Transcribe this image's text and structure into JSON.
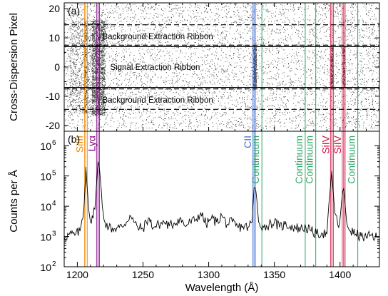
{
  "chart_data": [
    {
      "type": "scatter",
      "panel_label": "(a)",
      "xlim": [
        1190,
        1430
      ],
      "ylim": [
        -22,
        22
      ],
      "ylabel": "Cross-Dispersion Pixel",
      "yticks": [
        -20,
        -10,
        0,
        10,
        20
      ],
      "signal_boundaries": [
        -7,
        7
      ],
      "background_boundaries": [
        {
          "range": [
            7.5,
            14.5
          ],
          "label": "Background Extraction Ribbon"
        },
        {
          "range": [
            -14.5,
            -7.5
          ],
          "label": "Background Extraction Ribbon"
        }
      ],
      "annotations": [
        {
          "text": "Background Extraction Ribbon",
          "x": 1200,
          "y": 10.5
        },
        {
          "text": "Signal Extraction Ribbon",
          "x": 1206,
          "y": 0
        },
        {
          "text": "Background Extraction Ribbon",
          "x": 1200,
          "y": -11.2
        }
      ],
      "point_density_note": "uniform background counts across -20..22; enhanced counts near 1206 (Si III), 1216 (Ly-alpha), 1335 (C II), 1394 and 1403 (Si IV)"
    },
    {
      "type": "line",
      "panel_label": "(b)",
      "xlim": [
        1190,
        1430
      ],
      "ylim": [
        100,
        3000000
      ],
      "yscale": "log",
      "xlabel": "Wavelength (Å)",
      "ylabel": "Counts per Å",
      "xticks": [
        1200,
        1250,
        1300,
        1350,
        1400
      ],
      "yticks": [
        {
          "value": 100,
          "label": "10",
          "sup": "2"
        },
        {
          "value": 1000,
          "label": "10",
          "sup": "3"
        },
        {
          "value": 10000,
          "label": "10",
          "sup": "4"
        },
        {
          "value": 100000,
          "label": "10",
          "sup": "5"
        },
        {
          "value": 1000000,
          "label": "10",
          "sup": "6"
        }
      ],
      "spectrum": {
        "x": [
          1190,
          1194,
          1198,
          1202,
          1205,
          1206.5,
          1208,
          1210,
          1212,
          1214,
          1215.7,
          1217,
          1219,
          1221,
          1224,
          1228,
          1232,
          1236,
          1240,
          1243,
          1246,
          1250,
          1254,
          1258,
          1262,
          1266,
          1270,
          1274,
          1278,
          1282,
          1286,
          1290,
          1294,
          1298,
          1302,
          1306,
          1310,
          1314,
          1318,
          1322,
          1326,
          1330,
          1333,
          1334.5,
          1336,
          1338,
          1342,
          1346,
          1350,
          1354,
          1358,
          1362,
          1366,
          1370,
          1374,
          1378,
          1382,
          1386,
          1390,
          1393.8,
          1396,
          1399,
          1402.8,
          1405,
          1408,
          1412,
          1416,
          1420,
          1424,
          1428
        ],
        "y": [
          900,
          1200,
          1100,
          1500,
          8000,
          200000,
          20000,
          3000,
          4000,
          20000,
          300000,
          150000,
          10000,
          3000,
          2000,
          1800,
          2000,
          2500,
          5000,
          3000,
          2000,
          1800,
          4000,
          2000,
          2500,
          3000,
          2200,
          2800,
          4000,
          2200,
          3000,
          3500,
          6000,
          2500,
          4000,
          3000,
          5000,
          2500,
          3000,
          2000,
          2200,
          2000,
          3000,
          40000,
          30000,
          3000,
          2000,
          2500,
          3000,
          2000,
          2500,
          2200,
          2000,
          1800,
          2000,
          1500,
          1200,
          1300,
          1200,
          150000,
          6000,
          2000,
          40000,
          3000,
          1500,
          1200,
          1000,
          900,
          1100,
          900
        ]
      },
      "lines": [
        {
          "label": "SiIII",
          "x": 1206.5,
          "color": "#f28c00"
        },
        {
          "label": "Lyα",
          "x": 1215.7,
          "color": "#800080"
        },
        {
          "label": "CII",
          "x": 1334.5,
          "color": "#3f6fd6"
        },
        {
          "label": "Continuum",
          "x": 1340.5,
          "color": "#2ea866"
        },
        {
          "label": "Continuum",
          "x": 1373.5,
          "color": "#2ea866"
        },
        {
          "label": "Continuum",
          "x": 1381.5,
          "color": "#2ea866"
        },
        {
          "label": "SiIV",
          "x": 1393.8,
          "color": "#d01040"
        },
        {
          "label": "SiIV",
          "x": 1402.8,
          "color": "#d01040"
        },
        {
          "label": "Continuum",
          "x": 1413.5,
          "color": "#2ea866"
        }
      ]
    }
  ]
}
